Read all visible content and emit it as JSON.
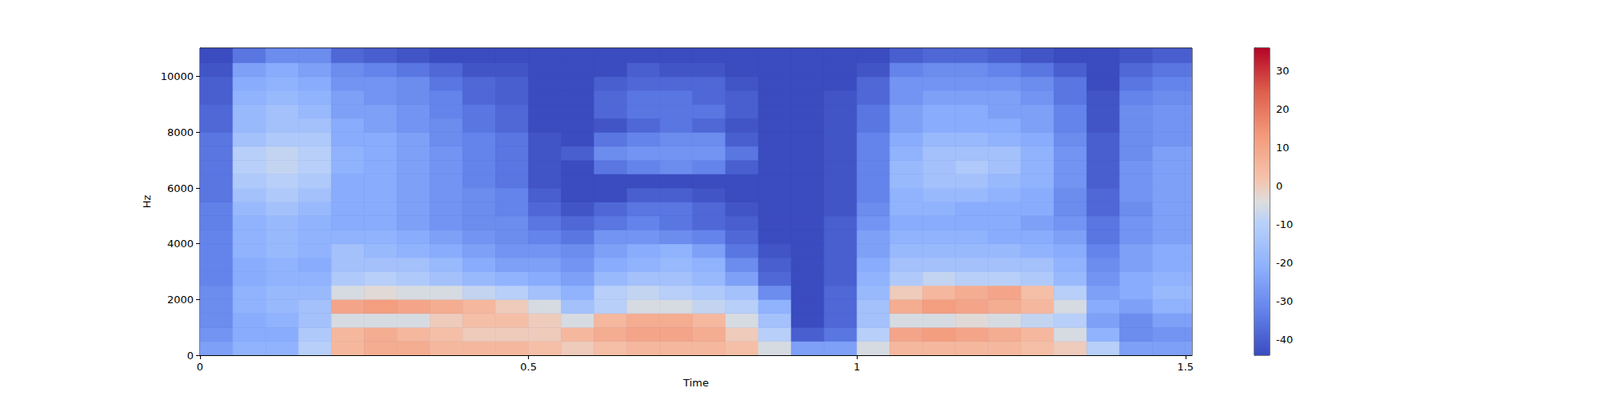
{
  "chart_data": {
    "type": "heatmap",
    "xlabel": "Time",
    "ylabel": "Hz",
    "x": [
      0,
      0.05,
      0.1,
      0.15,
      0.2,
      0.25,
      0.3,
      0.35,
      0.4,
      0.45,
      0.5,
      0.55,
      0.6,
      0.65,
      0.7,
      0.75,
      0.8,
      0.85,
      0.9,
      0.95,
      1.0,
      1.05,
      1.1,
      1.15,
      1.2,
      1.25,
      1.3,
      1.35,
      1.4,
      1.45,
      1.5,
      1.51
    ],
    "y": [
      0,
      500,
      1000,
      1500,
      2000,
      2500,
      3000,
      3500,
      4000,
      4500,
      5000,
      5500,
      6000,
      6500,
      7000,
      7500,
      8000,
      8500,
      9000,
      9500,
      10000,
      10500,
      11000
    ],
    "cells": [
      [
        -25,
        -20,
        -20,
        -10,
        5,
        8,
        8,
        5,
        5,
        5,
        3,
        0,
        3,
        5,
        5,
        5,
        3,
        -5,
        -25,
        -25,
        -5,
        5,
        5,
        5,
        5,
        3,
        0,
        -10,
        -25,
        -25,
        -25
      ],
      [
        -28,
        -22,
        -22,
        -12,
        5,
        8,
        5,
        3,
        0,
        0,
        0,
        5,
        8,
        10,
        10,
        8,
        0,
        -10,
        -40,
        -35,
        -10,
        10,
        12,
        10,
        8,
        5,
        -5,
        -20,
        -30,
        -28,
        -28
      ],
      [
        -30,
        -22,
        -20,
        -15,
        -5,
        -5,
        -5,
        0,
        3,
        3,
        0,
        -5,
        5,
        8,
        8,
        5,
        -5,
        -15,
        -44,
        -38,
        -15,
        -5,
        -5,
        -3,
        -5,
        -8,
        -10,
        -25,
        -30,
        -25,
        -25
      ],
      [
        -30,
        -20,
        -18,
        -15,
        10,
        12,
        10,
        8,
        5,
        0,
        -5,
        -15,
        -10,
        -5,
        -5,
        -8,
        -10,
        -20,
        -44,
        -38,
        -15,
        8,
        12,
        10,
        8,
        5,
        -5,
        -22,
        -25,
        -20,
        -20
      ],
      [
        -30,
        -20,
        -18,
        -18,
        -5,
        -3,
        -5,
        -5,
        -8,
        -10,
        -15,
        -20,
        -10,
        -8,
        -10,
        -12,
        -15,
        -30,
        -44,
        -38,
        -18,
        0,
        5,
        8,
        10,
        3,
        -10,
        -25,
        -22,
        -18,
        -18
      ],
      [
        -32,
        -22,
        -20,
        -20,
        -12,
        -10,
        -12,
        -15,
        -18,
        -20,
        -22,
        -25,
        -18,
        -15,
        -15,
        -18,
        -25,
        -38,
        -44,
        -40,
        -20,
        -12,
        -8,
        -10,
        -10,
        -12,
        -18,
        -28,
        -22,
        -20,
        -20
      ],
      [
        -32,
        -22,
        -20,
        -22,
        -15,
        -15,
        -15,
        -18,
        -22,
        -25,
        -25,
        -28,
        -22,
        -20,
        -18,
        -20,
        -30,
        -40,
        -44,
        -40,
        -22,
        -15,
        -15,
        -15,
        -15,
        -15,
        -20,
        -30,
        -25,
        -22,
        -22
      ],
      [
        -32,
        -20,
        -18,
        -20,
        -15,
        -18,
        -20,
        -22,
        -25,
        -28,
        -28,
        -30,
        -25,
        -22,
        -20,
        -25,
        -35,
        -42,
        -44,
        -40,
        -25,
        -18,
        -18,
        -18,
        -18,
        -20,
        -22,
        -32,
        -25,
        -22,
        -22
      ],
      [
        -32,
        -20,
        -18,
        -20,
        -20,
        -20,
        -22,
        -25,
        -28,
        -30,
        -32,
        -35,
        -28,
        -28,
        -30,
        -32,
        -38,
        -44,
        -44,
        -40,
        -25,
        -20,
        -20,
        -20,
        -22,
        -22,
        -25,
        -35,
        -28,
        -25,
        -25
      ],
      [
        -33,
        -20,
        -18,
        -20,
        -22,
        -22,
        -25,
        -28,
        -30,
        -30,
        -35,
        -38,
        -35,
        -32,
        -35,
        -38,
        -40,
        -44,
        -44,
        -40,
        -28,
        -22,
        -22,
        -22,
        -22,
        -25,
        -28,
        -35,
        -28,
        -25,
        -25
      ],
      [
        -33,
        -18,
        -15,
        -18,
        -22,
        -22,
        -25,
        -28,
        -30,
        -32,
        -38,
        -42,
        -38,
        -35,
        -35,
        -38,
        -42,
        -44,
        -44,
        -42,
        -30,
        -20,
        -20,
        -22,
        -22,
        -22,
        -30,
        -38,
        -30,
        -25,
        -25
      ],
      [
        -35,
        -15,
        -12,
        -15,
        -22,
        -22,
        -25,
        -28,
        -30,
        -32,
        -40,
        -44,
        -44,
        -40,
        -40,
        -42,
        -44,
        -44,
        -44,
        -42,
        -32,
        -20,
        -18,
        -18,
        -20,
        -22,
        -30,
        -38,
        -28,
        -25,
        -25
      ],
      [
        -35,
        -12,
        -10,
        -12,
        -22,
        -22,
        -25,
        -28,
        -32,
        -35,
        -42,
        -44,
        -44,
        -44,
        -44,
        -44,
        -44,
        -44,
        -44,
        -42,
        -32,
        -18,
        -15,
        -15,
        -18,
        -20,
        -28,
        -40,
        -28,
        -25,
        -25
      ],
      [
        -35,
        -10,
        -8,
        -10,
        -20,
        -22,
        -25,
        -28,
        -32,
        -35,
        -42,
        -44,
        -35,
        -32,
        -30,
        -32,
        -40,
        -44,
        -44,
        -42,
        -32,
        -18,
        -15,
        -12,
        -15,
        -20,
        -28,
        -40,
        -28,
        -25,
        -25
      ],
      [
        -35,
        -10,
        -8,
        -10,
        -20,
        -22,
        -25,
        -28,
        -32,
        -35,
        -42,
        -40,
        -30,
        -28,
        -28,
        -28,
        -35,
        -44,
        -44,
        -42,
        -32,
        -20,
        -15,
        -15,
        -15,
        -20,
        -28,
        -40,
        -30,
        -25,
        -25
      ],
      [
        -35,
        -15,
        -12,
        -12,
        -22,
        -22,
        -25,
        -30,
        -32,
        -35,
        -42,
        -44,
        -35,
        -32,
        -30,
        -30,
        -40,
        -44,
        -44,
        -42,
        -32,
        -22,
        -18,
        -18,
        -20,
        -22,
        -30,
        -40,
        -30,
        -28,
        -28
      ],
      [
        -38,
        -18,
        -15,
        -15,
        -22,
        -25,
        -28,
        -30,
        -35,
        -38,
        -44,
        -44,
        -42,
        -38,
        -35,
        -38,
        -42,
        -44,
        -44,
        -42,
        -35,
        -25,
        -22,
        -22,
        -22,
        -25,
        -32,
        -42,
        -30,
        -28,
        -28
      ],
      [
        -38,
        -18,
        -15,
        -18,
        -25,
        -25,
        -28,
        -32,
        -35,
        -38,
        -44,
        -44,
        -38,
        -35,
        -35,
        -35,
        -40,
        -44,
        -44,
        -42,
        -35,
        -25,
        -22,
        -22,
        -25,
        -25,
        -32,
        -42,
        -30,
        -28,
        -28
      ],
      [
        -40,
        -20,
        -18,
        -20,
        -25,
        -28,
        -30,
        -32,
        -38,
        -40,
        -44,
        -44,
        -38,
        -35,
        -35,
        -38,
        -40,
        -44,
        -44,
        -42,
        -38,
        -28,
        -25,
        -25,
        -25,
        -28,
        -35,
        -42,
        -32,
        -30,
        -30
      ],
      [
        -40,
        -22,
        -20,
        -22,
        -28,
        -28,
        -30,
        -35,
        -38,
        -40,
        -44,
        -44,
        -40,
        -38,
        -38,
        -38,
        -42,
        -44,
        -44,
        -44,
        -38,
        -28,
        -28,
        -28,
        -28,
        -30,
        -35,
        -44,
        -35,
        -32,
        -32
      ],
      [
        -42,
        -25,
        -22,
        -25,
        -30,
        -32,
        -35,
        -38,
        -42,
        -42,
        -44,
        -44,
        -44,
        -40,
        -42,
        -42,
        -44,
        -44,
        -44,
        -44,
        -42,
        -32,
        -30,
        -30,
        -32,
        -35,
        -40,
        -44,
        -38,
        -35,
        -35
      ],
      [
        -44,
        -35,
        -30,
        -30,
        -38,
        -40,
        -42,
        -44,
        -44,
        -44,
        -44,
        -44,
        -44,
        -44,
        -44,
        -44,
        -44,
        -44,
        -44,
        -44,
        -44,
        -40,
        -38,
        -38,
        -40,
        -42,
        -44,
        -44,
        -42,
        -40,
        -40
      ]
    ],
    "xlim": [
      0,
      1.51
    ],
    "xticks": [
      0,
      0.5,
      1,
      1.5
    ],
    "ylim": [
      0,
      11025
    ],
    "yticks": [
      0,
      2000,
      4000,
      6000,
      8000,
      10000
    ],
    "colorbar_range": [
      -44,
      36
    ],
    "colorbar_ticks": [
      -40,
      -30,
      -20,
      -10,
      0,
      10,
      20,
      30
    ]
  }
}
